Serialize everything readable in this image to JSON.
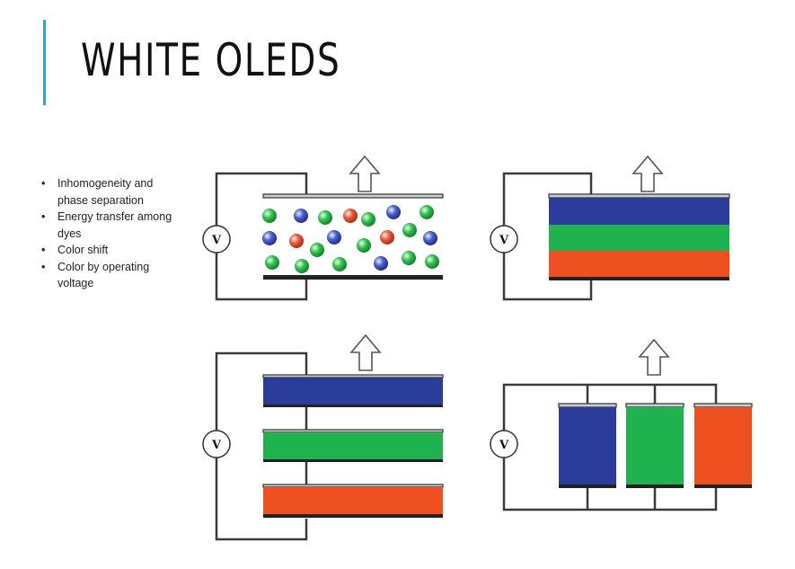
{
  "slide": {
    "title": "WHITE OLEDS",
    "accent_color": "#2aa6d9"
  },
  "bullets": [
    "Inhomogeneity and phase separation",
    "Energy transfer among dyes",
    "Color shift",
    "Color by operating voltage"
  ],
  "diagrams": {
    "voltage_label": "V",
    "colors": {
      "blue": "#2a3d9b",
      "green": "#1fb24e",
      "red": "#ef5020",
      "electrode": "#222222",
      "transparent_electrode": "#cccccc"
    },
    "panels": [
      "mixed-dye-single-layer",
      "stacked-rgb-layers",
      "stacked-rgb-separate-units",
      "side-by-side-rgb-pixels"
    ]
  }
}
